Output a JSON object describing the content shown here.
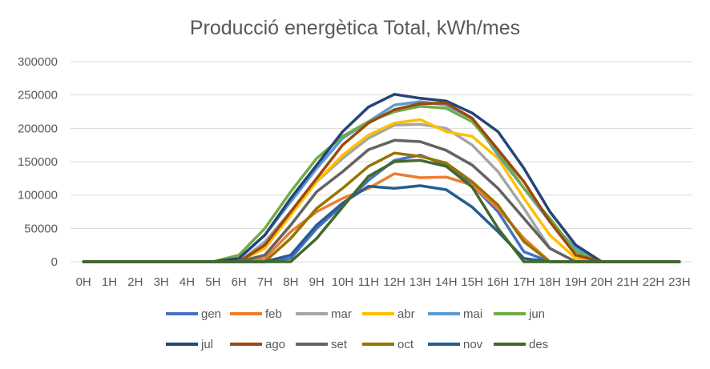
{
  "chart_data": {
    "type": "line",
    "title": "Producció energètica Total, kWh/mes",
    "xlabel": "",
    "ylabel": "",
    "ylim": [
      0,
      300000
    ],
    "yticks": [
      "0",
      "50000",
      "100000",
      "150000",
      "200000",
      "250000",
      "300000"
    ],
    "ytick_values": [
      0,
      50000,
      100000,
      150000,
      200000,
      250000,
      300000
    ],
    "categories": [
      "0H",
      "1H",
      "2H",
      "3H",
      "4H",
      "5H",
      "6H",
      "7H",
      "8H",
      "9H",
      "10H",
      "11H",
      "12H",
      "13H",
      "14H",
      "15H",
      "16H",
      "17H",
      "18H",
      "19H",
      "20H",
      "21H",
      "22H",
      "23H"
    ],
    "grid": true,
    "legend_position": "bottom",
    "series": [
      {
        "name": "gen",
        "color": "#4472C4",
        "values": [
          0,
          0,
          0,
          0,
          0,
          0,
          0,
          0,
          5000,
          50000,
          85000,
          122000,
          152000,
          160000,
          145000,
          115000,
          75000,
          15000,
          0,
          0,
          0,
          0,
          0,
          0
        ]
      },
      {
        "name": "feb",
        "color": "#ED7D31",
        "values": [
          0,
          0,
          0,
          0,
          0,
          0,
          0,
          5000,
          45000,
          75000,
          95000,
          110000,
          132000,
          126000,
          127000,
          115000,
          80000,
          35000,
          0,
          0,
          0,
          0,
          0,
          0
        ]
      },
      {
        "name": "mar",
        "color": "#A5A5A5",
        "values": [
          0,
          0,
          0,
          0,
          0,
          0,
          0,
          30000,
          75000,
          120000,
          155000,
          185000,
          205000,
          206000,
          200000,
          175000,
          135000,
          80000,
          20000,
          0,
          0,
          0,
          0,
          0
        ]
      },
      {
        "name": "abr",
        "color": "#FFC000",
        "values": [
          0,
          0,
          0,
          0,
          0,
          0,
          0,
          20000,
          70000,
          120000,
          160000,
          190000,
          208000,
          213000,
          195000,
          188000,
          155000,
          95000,
          40000,
          5000,
          0,
          0,
          0,
          0
        ]
      },
      {
        "name": "mai",
        "color": "#5B9BD5",
        "values": [
          0,
          0,
          0,
          0,
          0,
          0,
          5000,
          40000,
          90000,
          140000,
          185000,
          210000,
          235000,
          240000,
          235000,
          215000,
          160000,
          110000,
          60000,
          20000,
          0,
          0,
          0,
          0
        ]
      },
      {
        "name": "jun",
        "color": "#70AD47",
        "values": [
          0,
          0,
          0,
          0,
          0,
          0,
          10000,
          50000,
          105000,
          155000,
          188000,
          210000,
          225000,
          233000,
          230000,
          210000,
          165000,
          110000,
          65000,
          15000,
          0,
          0,
          0,
          0
        ]
      },
      {
        "name": "jul",
        "color": "#264478",
        "values": [
          0,
          0,
          0,
          0,
          0,
          0,
          5000,
          40000,
          95000,
          145000,
          195000,
          232000,
          251000,
          245000,
          241000,
          223000,
          195000,
          140000,
          75000,
          25000,
          0,
          0,
          0,
          0
        ]
      },
      {
        "name": "ago",
        "color": "#9E480E",
        "values": [
          0,
          0,
          0,
          0,
          0,
          0,
          0,
          25000,
          75000,
          125000,
          175000,
          208000,
          228000,
          237000,
          238000,
          215000,
          168000,
          120000,
          60000,
          10000,
          0,
          0,
          0,
          0
        ]
      },
      {
        "name": "set",
        "color": "#636363",
        "values": [
          0,
          0,
          0,
          0,
          0,
          0,
          0,
          10000,
          55000,
          105000,
          135000,
          168000,
          182000,
          180000,
          167000,
          145000,
          110000,
          65000,
          20000,
          0,
          0,
          0,
          0,
          0
        ]
      },
      {
        "name": "oct",
        "color": "#997300",
        "values": [
          0,
          0,
          0,
          0,
          0,
          0,
          0,
          0,
          35000,
          80000,
          110000,
          143000,
          163000,
          158000,
          148000,
          120000,
          85000,
          30000,
          0,
          0,
          0,
          0,
          0,
          0
        ]
      },
      {
        "name": "nov",
        "color": "#255E91",
        "values": [
          0,
          0,
          0,
          0,
          0,
          0,
          0,
          0,
          10000,
          55000,
          88000,
          113000,
          110000,
          114000,
          108000,
          82000,
          45000,
          5000,
          0,
          0,
          0,
          0,
          0,
          0
        ]
      },
      {
        "name": "des",
        "color": "#43682B",
        "values": [
          0,
          0,
          0,
          0,
          0,
          0,
          0,
          0,
          0,
          35000,
          82000,
          128000,
          150000,
          152000,
          143000,
          112000,
          50000,
          0,
          0,
          0,
          0,
          0,
          0,
          0
        ]
      }
    ]
  }
}
